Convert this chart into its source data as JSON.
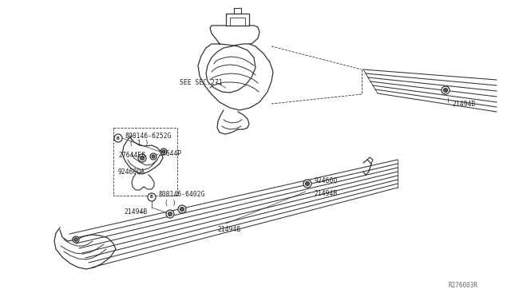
{
  "bg_color": "#ffffff",
  "line_color": "#333333",
  "text_color": "#222222",
  "fig_width": 6.4,
  "fig_height": 3.72,
  "dpi": 100,
  "part_number_ref": "R276003R",
  "labels": {
    "see_sec": "SEE SEC.271",
    "bolt1_label": "ß08146-6252G",
    "bolt1_qty": "( 1 )",
    "part_27644eb": "27644Eß",
    "part_27644p": "27644P",
    "part_92460qa": "92460QA",
    "part_21494b_tr": "21494B",
    "bolt2_label": "ß08146-6402G",
    "bolt2_qty": "( )",
    "part_21494b_bl": "21494B",
    "part_21494b_bm": "21494ß",
    "part_92460q_mid": "92460Q",
    "part_21494b_mid": "21494B"
  }
}
